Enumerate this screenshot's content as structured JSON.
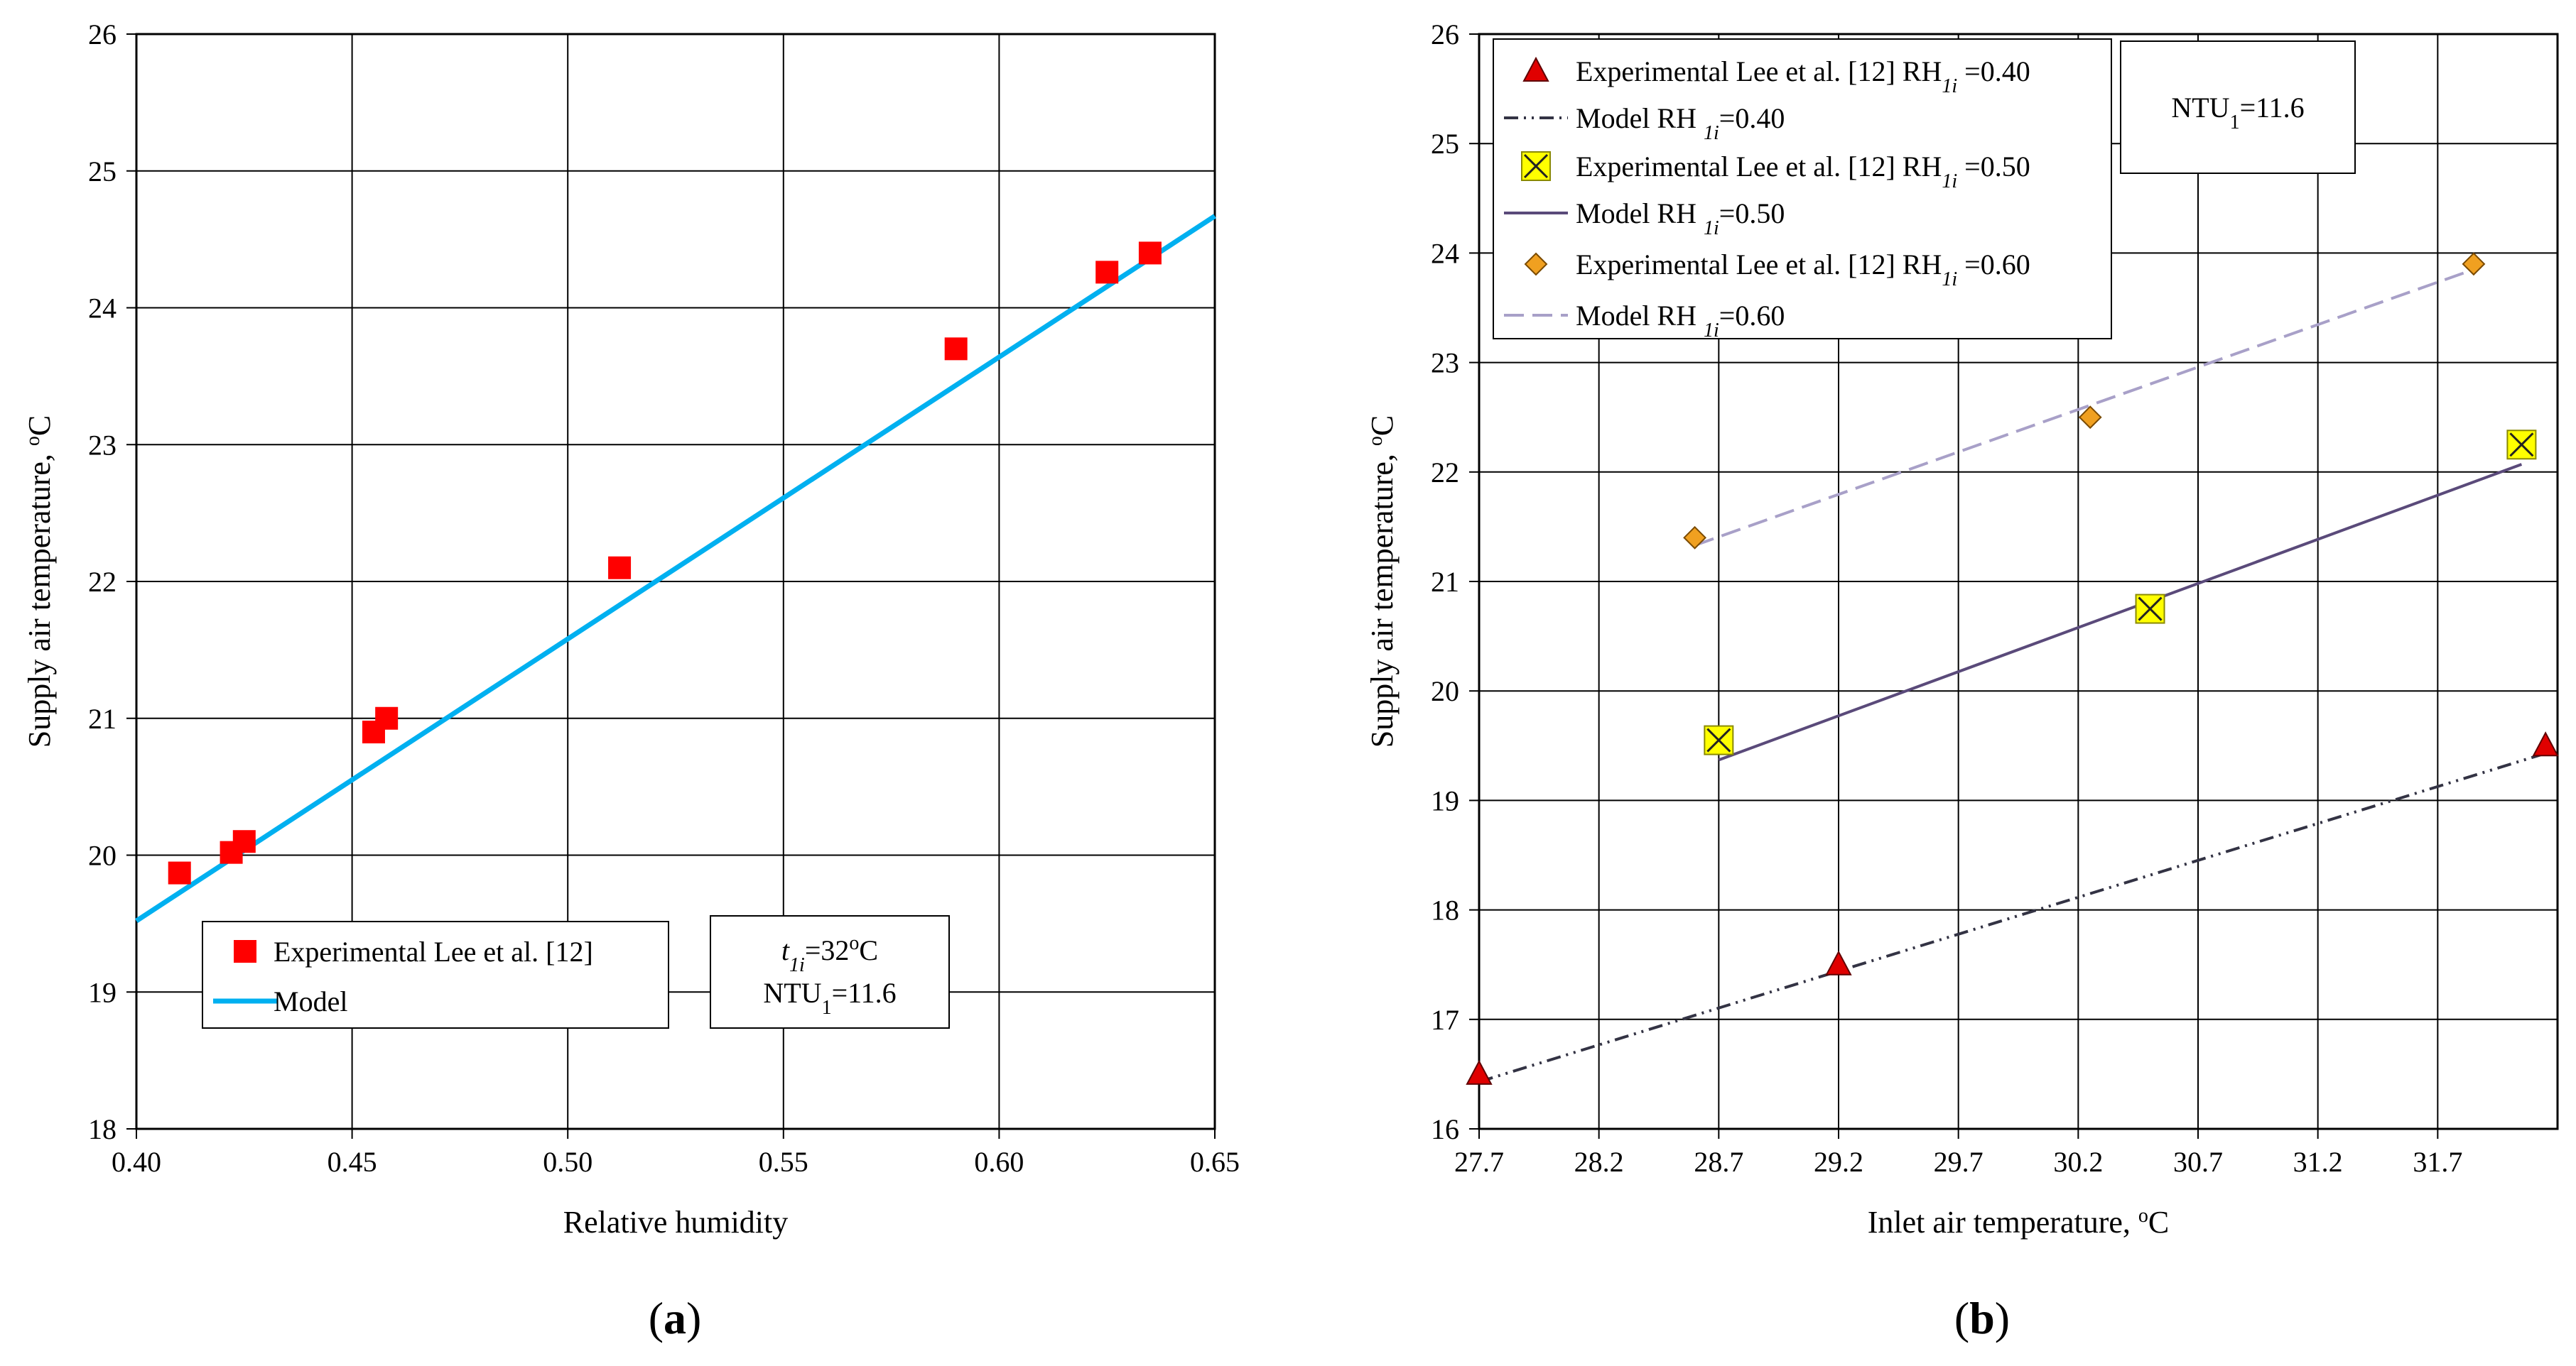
{
  "chart_data": [
    {
      "type": "scatter",
      "panel_label": "(a)",
      "panel_label_letter": "a",
      "xlabel": "Relative humidity",
      "ylabel": "Supply air temperature, ",
      "ylabel_unit_sup": "o",
      "ylabel_unit": "C",
      "xlim": [
        0.4,
        0.65
      ],
      "ylim": [
        18,
        26
      ],
      "xticks": [
        "0.40",
        "0.45",
        "0.50",
        "0.55",
        "0.60",
        "0.65"
      ],
      "xtick_values": [
        0.4,
        0.45,
        0.5,
        0.55,
        0.6,
        0.65
      ],
      "yticks": [
        "18",
        "19",
        "20",
        "21",
        "22",
        "23",
        "24",
        "25",
        "26"
      ],
      "ytick_values": [
        18,
        19,
        20,
        21,
        22,
        23,
        24,
        25,
        26
      ],
      "grid": true,
      "series": [
        {
          "name": "Experimental Lee et al. [12]",
          "kind": "markers",
          "marker": "square",
          "color": "#ff0000",
          "x": [
            0.41,
            0.422,
            0.425,
            0.455,
            0.458,
            0.512,
            0.59,
            0.625,
            0.635
          ],
          "y": [
            19.87,
            20.02,
            20.1,
            20.9,
            21.0,
            22.1,
            23.7,
            24.26,
            24.4
          ]
        },
        {
          "name": "Model",
          "kind": "line",
          "color": "#00b0f0",
          "x": [
            0.4,
            0.65
          ],
          "y": [
            19.52,
            24.67
          ]
        }
      ],
      "legend": [
        {
          "label": "Experimental Lee et al. [12]"
        },
        {
          "label": "Model"
        }
      ],
      "annotation": {
        "line1": {
          "var": "t",
          "sub": "1i",
          "rest": "=32",
          "sup": "o",
          "unit": "C"
        },
        "line2": {
          "text": "NTU",
          "sub": "1",
          "rest": "=11.6"
        }
      }
    },
    {
      "type": "scatter",
      "panel_label": "(b)",
      "panel_label_letter": "b",
      "xlabel": "Inlet air temperature, ",
      "xlabel_unit_sup": "o",
      "xlabel_unit": "C",
      "ylabel": "Supply air temperature, ",
      "ylabel_unit_sup": "o",
      "ylabel_unit": "C",
      "xlim": [
        27.7,
        32.2
      ],
      "ylim": [
        16,
        26
      ],
      "xticks": [
        "27.7",
        "28.2",
        "28.7",
        "29.2",
        "29.7",
        "30.2",
        "30.7",
        "31.2",
        "31.7"
      ],
      "xtick_values": [
        27.7,
        28.2,
        28.7,
        29.2,
        29.7,
        30.2,
        30.7,
        31.2,
        31.7
      ],
      "yticks": [
        "16",
        "17",
        "18",
        "19",
        "20",
        "21",
        "22",
        "23",
        "24",
        "25",
        "26"
      ],
      "ytick_values": [
        16,
        17,
        18,
        19,
        20,
        21,
        22,
        23,
        24,
        25,
        26
      ],
      "grid": true,
      "series": [
        {
          "name": "Experimental Lee et al. [12] RH1i=0.40",
          "kind": "markers",
          "marker": "triangle",
          "color": "#e00000",
          "x": [
            27.7,
            29.2,
            32.15
          ],
          "y": [
            16.5,
            17.5,
            19.5
          ]
        },
        {
          "name": "Model RH1i=0.40",
          "kind": "line",
          "dash": "20,8,3,8,3,8",
          "color": "#333344",
          "x": [
            27.7,
            32.15
          ],
          "y": [
            16.43,
            19.43
          ]
        },
        {
          "name": "Experimental Lee et al. [12] RH1i=0.50",
          "kind": "markers",
          "marker": "xbox",
          "color": "#ffff00",
          "x": [
            28.7,
            30.5,
            32.05
          ],
          "y": [
            19.55,
            20.75,
            22.25
          ]
        },
        {
          "name": "Model RH1i=0.50",
          "kind": "line",
          "dash": "",
          "color": "#5a4a7a",
          "x": [
            28.7,
            32.05
          ],
          "y": [
            19.37,
            22.07
          ]
        },
        {
          "name": "Experimental Lee et al. [12] RH1i=0.60",
          "kind": "markers",
          "marker": "diamond",
          "color": "#f0a020",
          "x": [
            28.6,
            30.25,
            31.85
          ],
          "y": [
            21.4,
            22.5,
            23.9
          ]
        },
        {
          "name": "Model RH1i=0.60",
          "kind": "line",
          "dash": "28,12",
          "color": "#a8a0c8",
          "x": [
            28.6,
            31.85
          ],
          "y": [
            21.33,
            23.85
          ]
        }
      ],
      "legend": [
        {
          "prefix": "Experimental Lee et al. [12] RH",
          "sub": "1i",
          "suffix": " =0.40"
        },
        {
          "prefix": "Model RH ",
          "sub": "1i",
          "suffix": "=0.40"
        },
        {
          "prefix": "Experimental Lee et al. [12] RH",
          "sub": "1i",
          "suffix": " =0.50"
        },
        {
          "prefix": "Model RH ",
          "sub": "1i",
          "suffix": "=0.50"
        },
        {
          "prefix": "Experimental Lee et al. [12] RH",
          "sub": "1i",
          "suffix": " =0.60"
        },
        {
          "prefix": "Model RH ",
          "sub": "1i",
          "suffix": "=0.60"
        }
      ],
      "annotation": {
        "line1": {
          "text": "NTU",
          "sub": "1",
          "rest": "=11.6"
        }
      }
    }
  ]
}
